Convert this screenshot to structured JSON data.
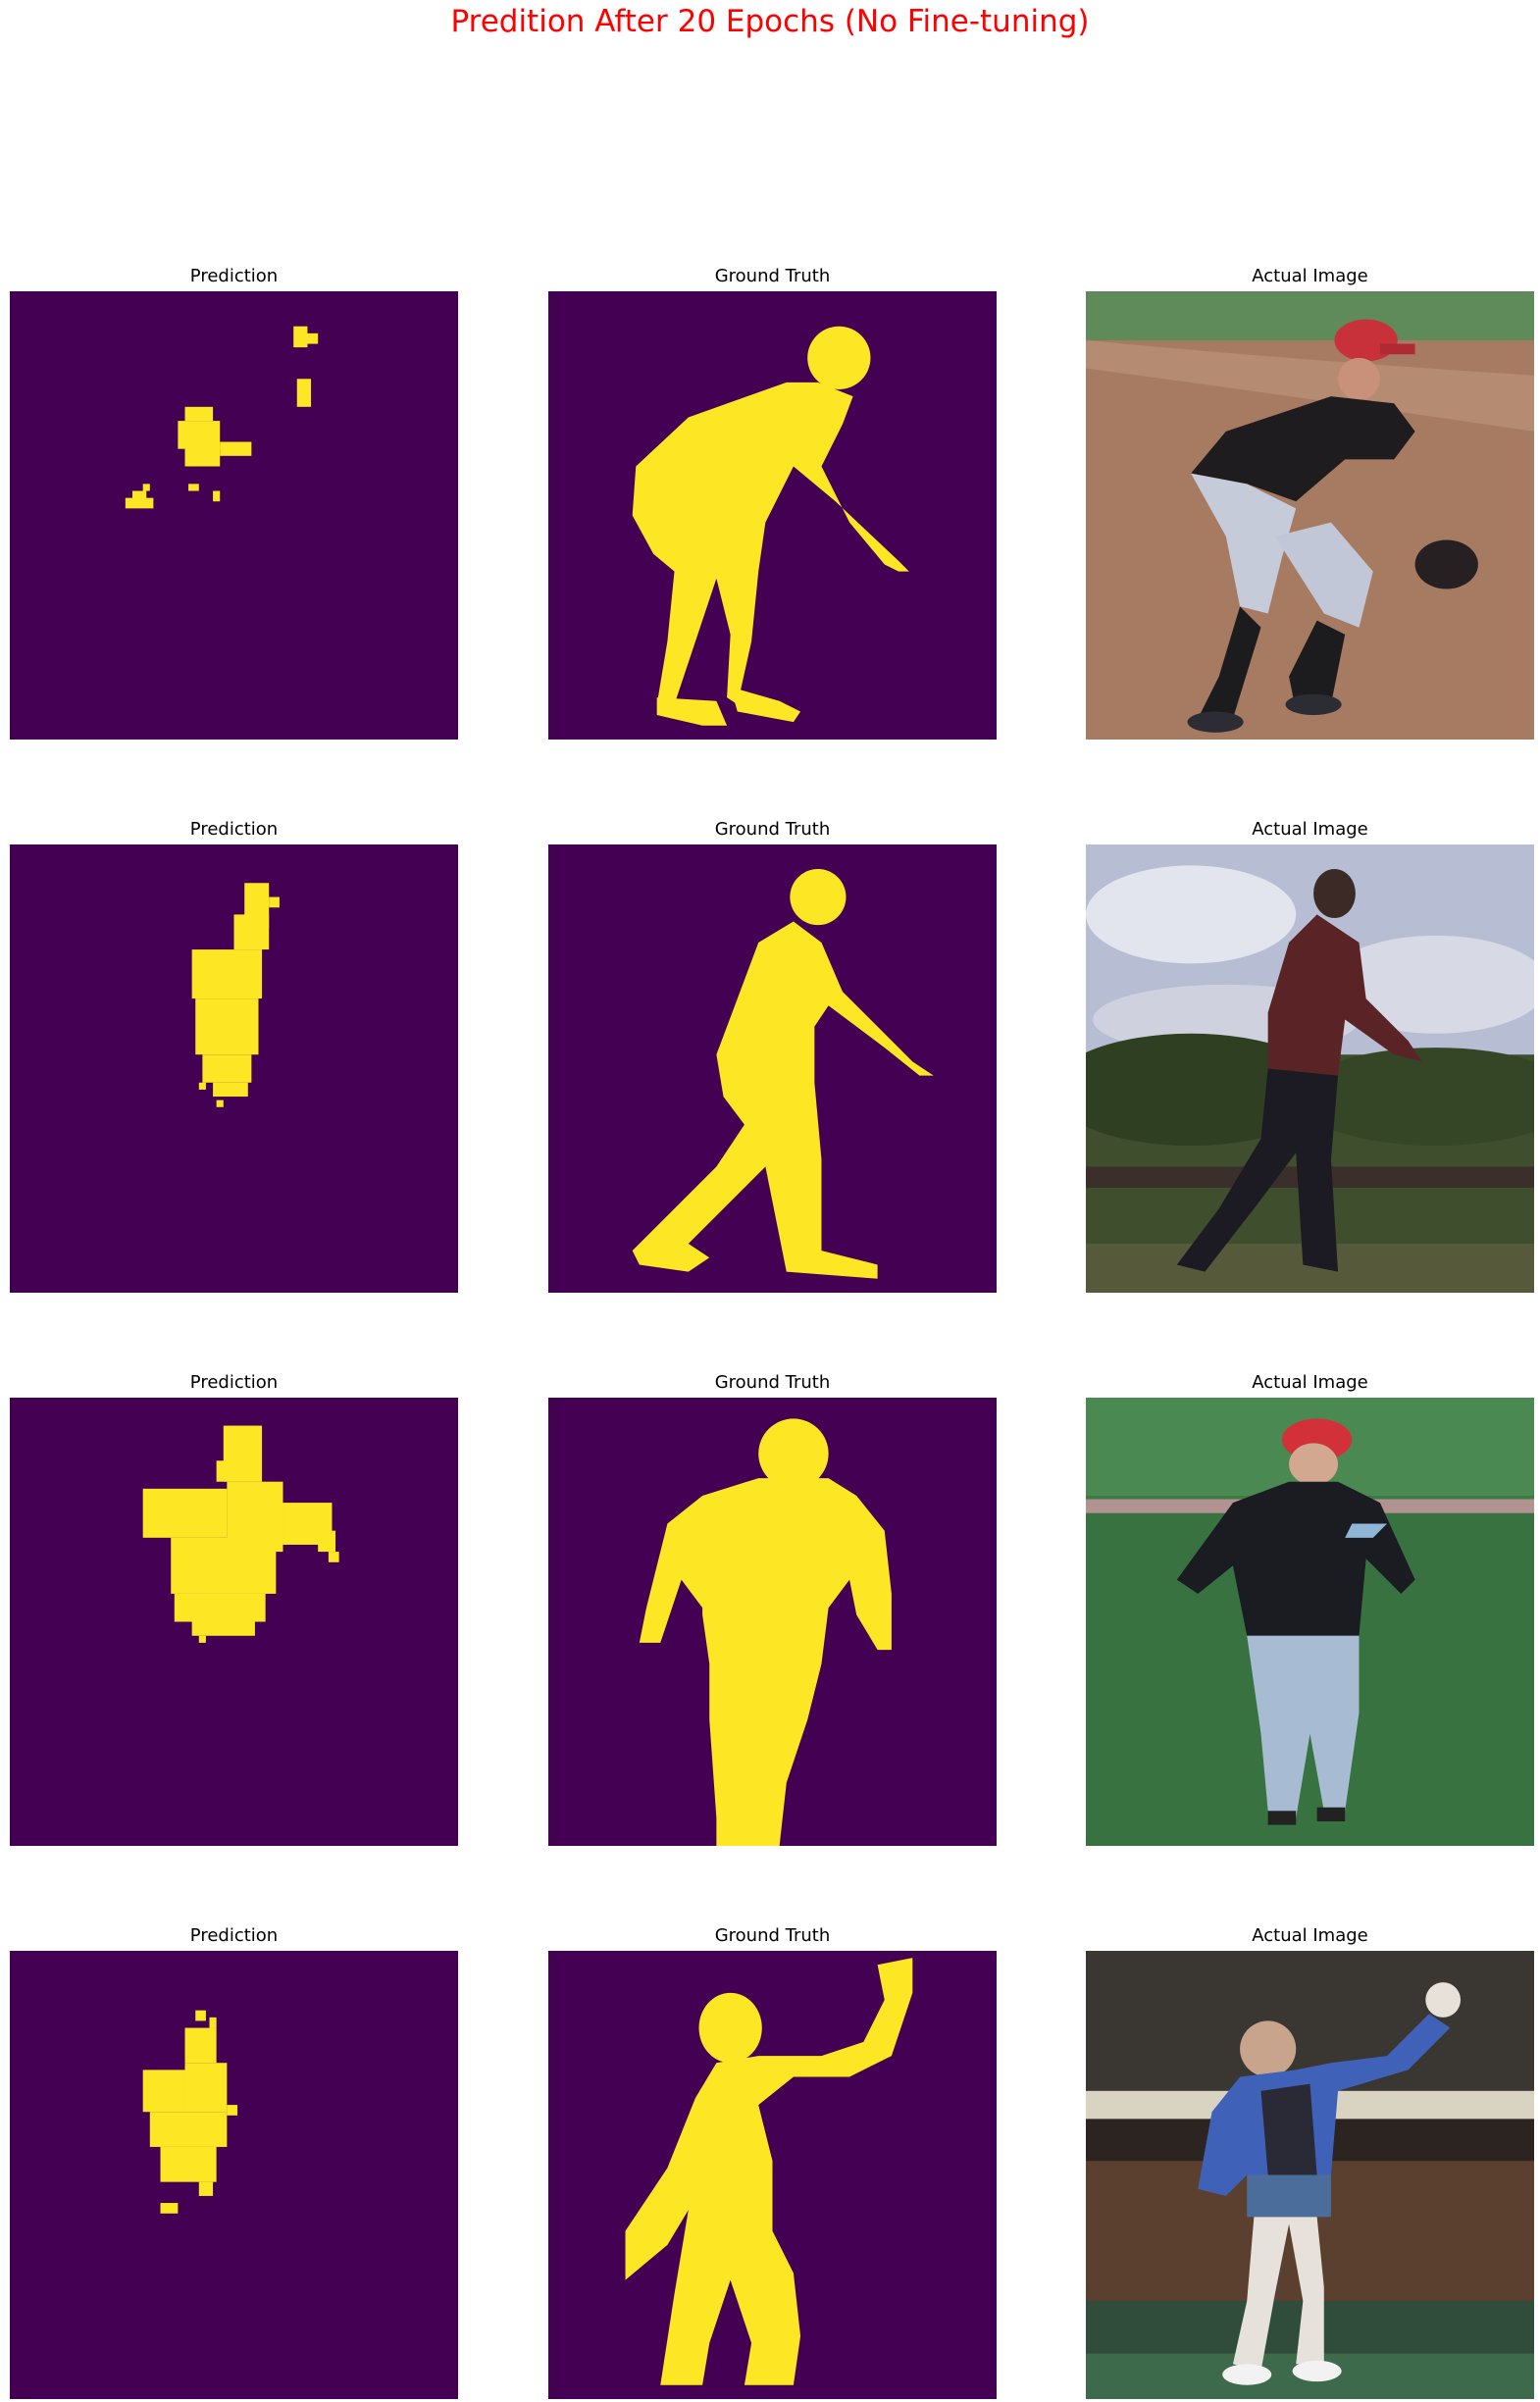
{
  "figure": {
    "title": "Predition After 20 Epochs (No Fine-tuning)",
    "title_color": "#ff0000",
    "mask_background_color": "#440154",
    "mask_foreground_color": "#fde725"
  },
  "rows": [
    {
      "panels": [
        {
          "title": "Prediction",
          "kind": "predicted-mask",
          "subject": "sparse scattered yellow pixel blobs"
        },
        {
          "title": "Ground Truth",
          "kind": "ground-truth-mask",
          "subject": "crouching fielder silhouette"
        },
        {
          "title": "Actual Image",
          "kind": "photo",
          "subject": "baseball infielder crouching on dirt with red cap and glove"
        }
      ]
    },
    {
      "panels": [
        {
          "title": "Prediction",
          "kind": "predicted-mask",
          "subject": "narrow vertical yellow blob"
        },
        {
          "title": "Ground Truth",
          "kind": "ground-truth-mask",
          "subject": "walking person silhouette"
        },
        {
          "title": "Actual Image",
          "kind": "photo",
          "subject": "man walking in front of trees under cloudy sky"
        }
      ]
    },
    {
      "panels": [
        {
          "title": "Prediction",
          "kind": "predicted-mask",
          "subject": "wide yellow torso blob"
        },
        {
          "title": "Ground Truth",
          "kind": "ground-truth-mask",
          "subject": "standing man silhouette"
        },
        {
          "title": "Actual Image",
          "kind": "photo",
          "subject": "man in red cap and black shirt on grass field"
        }
      ]
    },
    {
      "panels": [
        {
          "title": "Prediction",
          "kind": "predicted-mask",
          "subject": "thin yellow blob with stray dot"
        },
        {
          "title": "Ground Truth",
          "kind": "ground-truth-mask",
          "subject": "person with raised arm silhouette"
        },
        {
          "title": "Actual Image",
          "kind": "photo",
          "subject": "person in blue shirt holding ball up indoors"
        }
      ]
    }
  ]
}
